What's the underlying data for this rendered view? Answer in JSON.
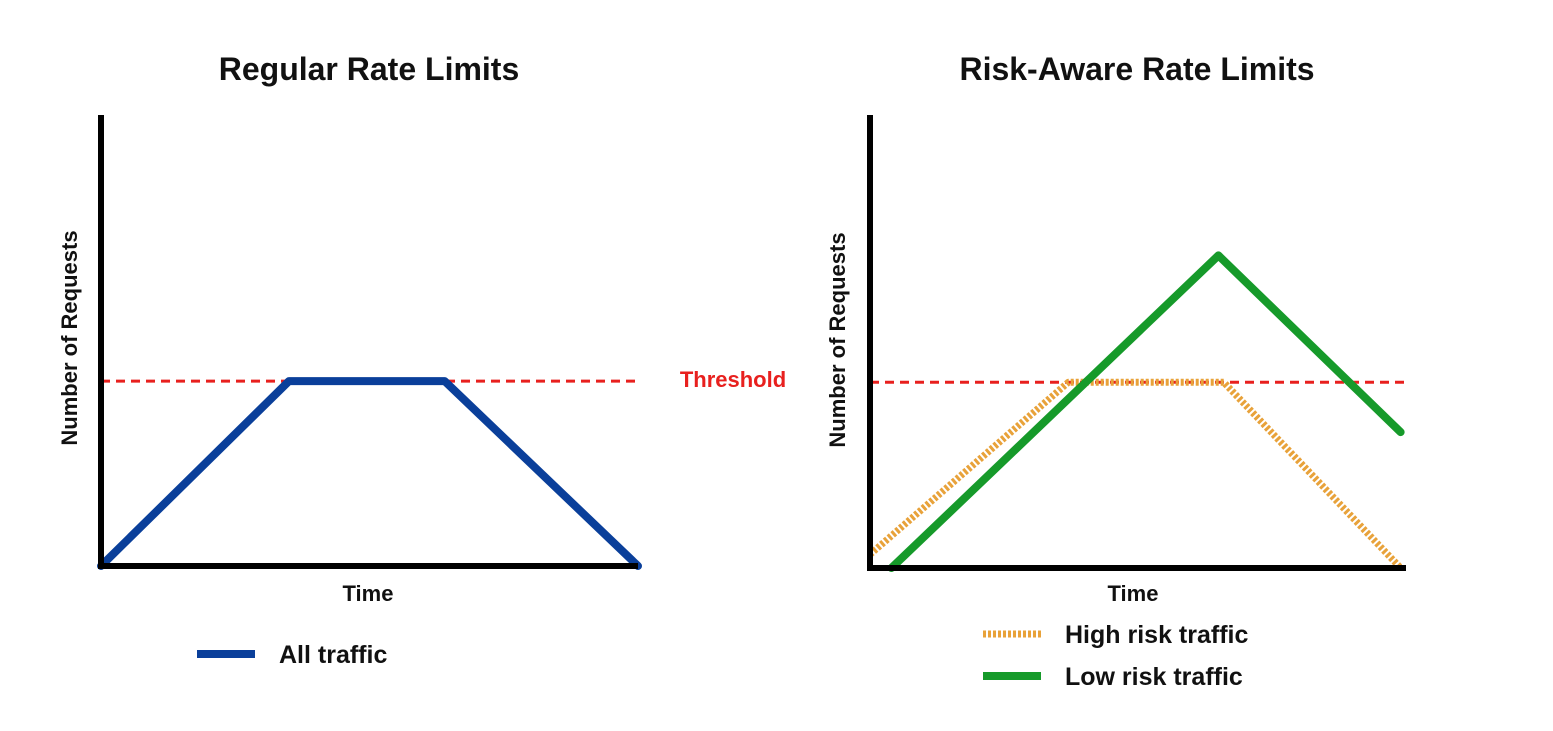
{
  "chart_data": [
    {
      "type": "line",
      "title": "Regular Rate Limits",
      "xlabel": "Time",
      "ylabel": "Number of Requests",
      "xlim": [
        0,
        10
      ],
      "ylim": [
        0,
        10
      ],
      "grid": false,
      "legend_position": "bottom",
      "series": [
        {
          "name": "All traffic",
          "color": "#0a3f9a",
          "style": "solid",
          "x": [
            0,
            3.5,
            6.4,
            10
          ],
          "y": [
            0,
            4.1,
            4.1,
            0
          ]
        }
      ],
      "reference_lines": [
        {
          "label": "Threshold",
          "y": 4.1,
          "color": "#e8201e",
          "style": "dashed"
        }
      ]
    },
    {
      "type": "line",
      "title": "Risk-Aware Rate Limits",
      "xlabel": "Time",
      "ylabel": "Number of Requests",
      "xlim": [
        0,
        10
      ],
      "ylim": [
        0,
        10
      ],
      "grid": false,
      "legend_position": "bottom",
      "series": [
        {
          "name": "High risk traffic",
          "color": "#e8a23a",
          "style": "dotted",
          "x": [
            0,
            3.7,
            6.6,
            9.9
          ],
          "y": [
            0.3,
            4.1,
            4.1,
            0
          ]
        },
        {
          "name": "Low risk traffic",
          "color": "#169a2a",
          "style": "solid",
          "x": [
            0.4,
            6.5,
            9.9
          ],
          "y": [
            0,
            6.9,
            3.0
          ]
        }
      ],
      "reference_lines": [
        {
          "label": "",
          "y": 4.1,
          "color": "#e8201e",
          "style": "dashed"
        }
      ]
    }
  ]
}
